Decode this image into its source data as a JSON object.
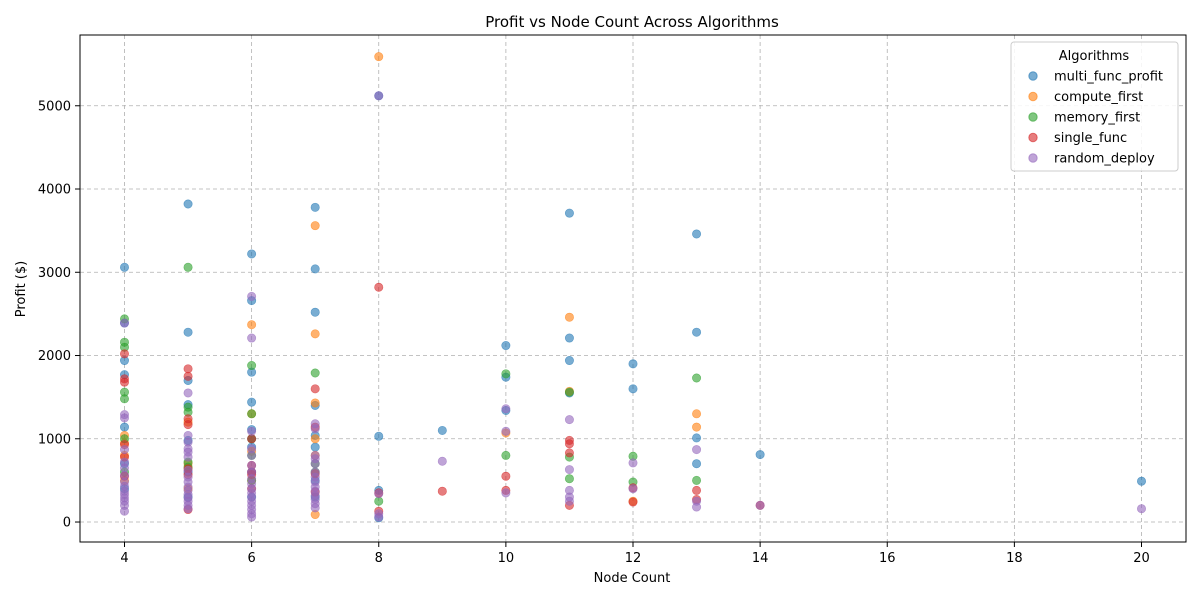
{
  "chart_data": {
    "type": "scatter",
    "title": "Profit vs Node Count Across Algorithms",
    "xlabel": "Node Count",
    "ylabel": "Profit ($)",
    "xlim": [
      3.3,
      20.7
    ],
    "ylim": [
      -240,
      5850
    ],
    "xticks": [
      4,
      6,
      8,
      10,
      12,
      14,
      16,
      18,
      20
    ],
    "yticks": [
      0,
      1000,
      2000,
      3000,
      4000,
      5000
    ],
    "grid": true,
    "legend_title": "Algorithms",
    "legend_position": "top-right",
    "series": [
      {
        "name": "multi_func_profit",
        "color": "#1f77b4",
        "points": [
          [
            4,
            3060
          ],
          [
            4,
            2390
          ],
          [
            4,
            1940
          ],
          [
            4,
            1770
          ],
          [
            4,
            1140
          ],
          [
            4,
            700
          ],
          [
            4,
            400
          ],
          [
            5,
            3820
          ],
          [
            5,
            2280
          ],
          [
            5,
            1700
          ],
          [
            5,
            1410
          ],
          [
            5,
            980
          ],
          [
            5,
            600
          ],
          [
            5,
            300
          ],
          [
            6,
            3220
          ],
          [
            6,
            2660
          ],
          [
            6,
            1800
          ],
          [
            6,
            1440
          ],
          [
            6,
            1110
          ],
          [
            6,
            1000
          ],
          [
            6,
            900
          ],
          [
            6,
            600
          ],
          [
            6,
            300
          ],
          [
            7,
            3780
          ],
          [
            7,
            3040
          ],
          [
            7,
            2520
          ],
          [
            7,
            1400
          ],
          [
            7,
            1040
          ],
          [
            7,
            900
          ],
          [
            7,
            500
          ],
          [
            7,
            300
          ],
          [
            8,
            5120
          ],
          [
            8,
            1030
          ],
          [
            8,
            380
          ],
          [
            8,
            50
          ],
          [
            9,
            1100
          ],
          [
            10,
            2120
          ],
          [
            10,
            1740
          ],
          [
            10,
            1340
          ],
          [
            11,
            3710
          ],
          [
            11,
            2210
          ],
          [
            11,
            1940
          ],
          [
            11,
            1550
          ],
          [
            12,
            1900
          ],
          [
            12,
            1600
          ],
          [
            13,
            3460
          ],
          [
            13,
            2280
          ],
          [
            13,
            1010
          ],
          [
            13,
            700
          ],
          [
            14,
            810
          ],
          [
            20,
            490
          ]
        ]
      },
      {
        "name": "compute_first",
        "color": "#ff7f0e",
        "points": [
          [
            4,
            1040
          ],
          [
            4,
            950
          ],
          [
            4,
            800
          ],
          [
            4,
            500
          ],
          [
            5,
            1200
          ],
          [
            5,
            700
          ],
          [
            5,
            400
          ],
          [
            6,
            2370
          ],
          [
            6,
            1300
          ],
          [
            6,
            850
          ],
          [
            6,
            500
          ],
          [
            7,
            3560
          ],
          [
            7,
            2260
          ],
          [
            7,
            1430
          ],
          [
            7,
            1000
          ],
          [
            7,
            800
          ],
          [
            7,
            90
          ],
          [
            8,
            5590
          ],
          [
            10,
            1070
          ],
          [
            11,
            2460
          ],
          [
            11,
            1570
          ],
          [
            12,
            250
          ],
          [
            13,
            1300
          ],
          [
            13,
            1140
          ]
        ]
      },
      {
        "name": "memory_first",
        "color": "#2ca02c",
        "points": [
          [
            4,
            2440
          ],
          [
            4,
            2160
          ],
          [
            4,
            2100
          ],
          [
            4,
            1560
          ],
          [
            4,
            1480
          ],
          [
            4,
            1000
          ],
          [
            4,
            600
          ],
          [
            5,
            3060
          ],
          [
            5,
            1380
          ],
          [
            5,
            1320
          ],
          [
            5,
            720
          ],
          [
            5,
            660
          ],
          [
            6,
            1880
          ],
          [
            6,
            1300
          ],
          [
            6,
            1000
          ],
          [
            6,
            800
          ],
          [
            6,
            500
          ],
          [
            7,
            1790
          ],
          [
            7,
            700
          ],
          [
            7,
            600
          ],
          [
            8,
            250
          ],
          [
            10,
            1780
          ],
          [
            10,
            800
          ],
          [
            11,
            1560
          ],
          [
            11,
            780
          ],
          [
            11,
            520
          ],
          [
            12,
            790
          ],
          [
            12,
            480
          ],
          [
            13,
            1730
          ],
          [
            13,
            500
          ]
        ]
      },
      {
        "name": "single_func",
        "color": "#d62728",
        "points": [
          [
            4,
            2020
          ],
          [
            4,
            1720
          ],
          [
            4,
            1680
          ],
          [
            4,
            930
          ],
          [
            4,
            780
          ],
          [
            4,
            550
          ],
          [
            5,
            1840
          ],
          [
            5,
            1750
          ],
          [
            5,
            1240
          ],
          [
            5,
            1170
          ],
          [
            5,
            640
          ],
          [
            5,
            570
          ],
          [
            5,
            150
          ],
          [
            6,
            1000
          ],
          [
            6,
            680
          ],
          [
            6,
            600
          ],
          [
            6,
            570
          ],
          [
            6,
            400
          ],
          [
            7,
            1600
          ],
          [
            7,
            1140
          ],
          [
            7,
            580
          ],
          [
            7,
            360
          ],
          [
            8,
            2820
          ],
          [
            8,
            350
          ],
          [
            8,
            130
          ],
          [
            9,
            370
          ],
          [
            10,
            550
          ],
          [
            10,
            380
          ],
          [
            11,
            980
          ],
          [
            11,
            940
          ],
          [
            11,
            830
          ],
          [
            11,
            200
          ],
          [
            12,
            410
          ],
          [
            12,
            240
          ],
          [
            13,
            380
          ],
          [
            13,
            270
          ],
          [
            14,
            200
          ]
        ]
      },
      {
        "name": "random_deploy",
        "color": "#9467bd",
        "points": [
          [
            4,
            2390
          ],
          [
            4,
            1290
          ],
          [
            4,
            1250
          ],
          [
            4,
            870
          ],
          [
            4,
            720
          ],
          [
            4,
            650
          ],
          [
            4,
            560
          ],
          [
            4,
            480
          ],
          [
            4,
            430
          ],
          [
            4,
            370
          ],
          [
            4,
            330
          ],
          [
            4,
            290
          ],
          [
            4,
            250
          ],
          [
            4,
            200
          ],
          [
            4,
            130
          ],
          [
            5,
            1550
          ],
          [
            5,
            1040
          ],
          [
            5,
            960
          ],
          [
            5,
            880
          ],
          [
            5,
            840
          ],
          [
            5,
            780
          ],
          [
            5,
            620
          ],
          [
            5,
            540
          ],
          [
            5,
            480
          ],
          [
            5,
            420
          ],
          [
            5,
            380
          ],
          [
            5,
            330
          ],
          [
            5,
            290
          ],
          [
            5,
            250
          ],
          [
            5,
            200
          ],
          [
            5,
            160
          ],
          [
            6,
            2710
          ],
          [
            6,
            2210
          ],
          [
            6,
            1090
          ],
          [
            6,
            880
          ],
          [
            6,
            800
          ],
          [
            6,
            680
          ],
          [
            6,
            600
          ],
          [
            6,
            520
          ],
          [
            6,
            460
          ],
          [
            6,
            400
          ],
          [
            6,
            350
          ],
          [
            6,
            300
          ],
          [
            6,
            250
          ],
          [
            6,
            200
          ],
          [
            6,
            150
          ],
          [
            6,
            100
          ],
          [
            6,
            60
          ],
          [
            7,
            1180
          ],
          [
            7,
            1120
          ],
          [
            7,
            800
          ],
          [
            7,
            760
          ],
          [
            7,
            700
          ],
          [
            7,
            600
          ],
          [
            7,
            540
          ],
          [
            7,
            480
          ],
          [
            7,
            420
          ],
          [
            7,
            370
          ],
          [
            7,
            320
          ],
          [
            7,
            270
          ],
          [
            7,
            220
          ],
          [
            7,
            170
          ],
          [
            8,
            5120
          ],
          [
            8,
            340
          ],
          [
            8,
            100
          ],
          [
            8,
            60
          ],
          [
            9,
            730
          ],
          [
            10,
            1360
          ],
          [
            10,
            1090
          ],
          [
            10,
            350
          ],
          [
            11,
            1230
          ],
          [
            11,
            630
          ],
          [
            11,
            380
          ],
          [
            11,
            300
          ],
          [
            11,
            250
          ],
          [
            12,
            710
          ],
          [
            12,
            400
          ],
          [
            13,
            870
          ],
          [
            13,
            250
          ],
          [
            13,
            180
          ],
          [
            14,
            200
          ],
          [
            20,
            160
          ]
        ]
      }
    ]
  }
}
